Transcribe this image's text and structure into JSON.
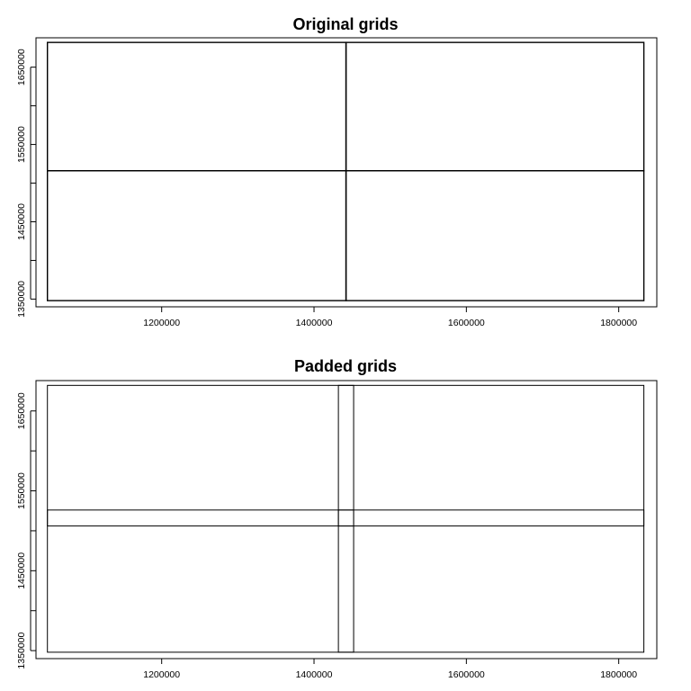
{
  "chart_data": [
    {
      "type": "rectangles",
      "title": "Original grids",
      "xlabel": "",
      "ylabel": "",
      "x_ticks": [
        1200000,
        1400000,
        1600000,
        1800000
      ],
      "y_ticks": [
        1350000,
        1450000,
        1550000,
        1650000
      ],
      "x_tick_labels": [
        "1200000",
        "1400000",
        "1600000",
        "1800000"
      ],
      "y_tick_labels": [
        "1350000",
        "1450000",
        "1550000",
        "1650000"
      ],
      "x_minor_ticks": [],
      "y_minor_ticks": [
        1400000,
        1500000,
        1600000
      ],
      "xlim": [
        1035000,
        1850000
      ],
      "ylim": [
        1340000,
        1688000
      ],
      "grid": false,
      "rectangles": [
        {
          "x0": 1050000,
          "x1": 1442000,
          "y0": 1516000,
          "y1": 1682000
        },
        {
          "x0": 1442000,
          "x1": 1833000,
          "y0": 1516000,
          "y1": 1682000
        },
        {
          "x0": 1050000,
          "x1": 1442000,
          "y0": 1348000,
          "y1": 1516000
        },
        {
          "x0": 1442000,
          "x1": 1833000,
          "y0": 1348000,
          "y1": 1516000
        }
      ]
    },
    {
      "type": "rectangles",
      "title": "Padded grids",
      "xlabel": "",
      "ylabel": "",
      "x_ticks": [
        1200000,
        1400000,
        1600000,
        1800000
      ],
      "y_ticks": [
        1350000,
        1450000,
        1550000,
        1650000
      ],
      "x_tick_labels": [
        "1200000",
        "1400000",
        "1600000",
        "1800000"
      ],
      "y_tick_labels": [
        "1350000",
        "1450000",
        "1550000",
        "1650000"
      ],
      "x_minor_ticks": [],
      "y_minor_ticks": [
        1400000,
        1500000,
        1600000
      ],
      "xlim": [
        1035000,
        1850000
      ],
      "ylim": [
        1340000,
        1688000
      ],
      "grid": false,
      "rectangles": [
        {
          "x0": 1050000,
          "x1": 1452000,
          "y0": 1506000,
          "y1": 1682000
        },
        {
          "x0": 1432000,
          "x1": 1833000,
          "y0": 1506000,
          "y1": 1682000
        },
        {
          "x0": 1050000,
          "x1": 1452000,
          "y0": 1348000,
          "y1": 1526000
        },
        {
          "x0": 1432000,
          "x1": 1833000,
          "y0": 1348000,
          "y1": 1526000
        }
      ]
    }
  ]
}
